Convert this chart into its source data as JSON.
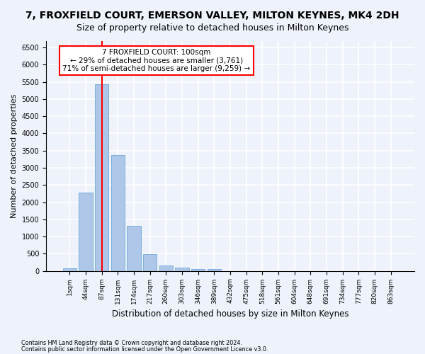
{
  "title": "7, FROXFIELD COURT, EMERSON VALLEY, MILTON KEYNES, MK4 2DH",
  "subtitle": "Size of property relative to detached houses in Milton Keynes",
  "xlabel": "Distribution of detached houses by size in Milton Keynes",
  "ylabel": "Number of detached properties",
  "footnote1": "Contains HM Land Registry data © Crown copyright and database right 2024.",
  "footnote2": "Contains public sector information licensed under the Open Government Licence v3.0.",
  "bin_labels": [
    "1sqm",
    "44sqm",
    "87sqm",
    "131sqm",
    "174sqm",
    "217sqm",
    "260sqm",
    "303sqm",
    "346sqm",
    "389sqm",
    "432sqm",
    "475sqm",
    "518sqm",
    "561sqm",
    "604sqm",
    "648sqm",
    "691sqm",
    "734sqm",
    "777sqm",
    "820sqm",
    "863sqm"
  ],
  "bar_values": [
    75,
    2280,
    5430,
    3380,
    1310,
    480,
    165,
    90,
    60,
    45,
    0,
    0,
    0,
    0,
    0,
    0,
    0,
    0,
    0,
    0,
    0
  ],
  "bar_color": "#aec6e8",
  "bar_edge_color": "#5a9ed4",
  "vline_x": 2,
  "vline_color": "red",
  "annotation_text": "7 FROXFIELD COURT: 100sqm\n← 29% of detached houses are smaller (3,761)\n71% of semi-detached houses are larger (9,259) →",
  "ylim": [
    0,
    6700
  ],
  "yticks": [
    0,
    500,
    1000,
    1500,
    2000,
    2500,
    3000,
    3500,
    4000,
    4500,
    5000,
    5500,
    6000,
    6500
  ],
  "background_color": "#eef2fb",
  "grid_color": "#ffffff",
  "title_fontsize": 10,
  "subtitle_fontsize": 9,
  "label_fontsize": 8
}
